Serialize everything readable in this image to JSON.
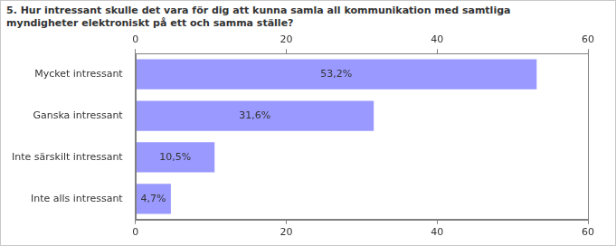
{
  "chart_data": {
    "type": "bar",
    "orientation": "horizontal",
    "title": "5. Hur intressant skulle det vara för dig att kunna samla all kommunikation med samtliga myndigheter elektroniskt på ett och samma ställe?",
    "categories": [
      "Mycket intressant",
      "Ganska intressant",
      "Inte särskilt intressant",
      "Inte alls intressant"
    ],
    "values": [
      53.2,
      31.6,
      10.5,
      4.7
    ],
    "value_labels": [
      "53,2%",
      "31,6%",
      "10,5%",
      "4,7%"
    ],
    "data_labels": true,
    "color": "#9999ff",
    "xlim": [
      0,
      60
    ],
    "xticks": [
      0,
      20,
      40,
      60
    ],
    "grid": false
  }
}
